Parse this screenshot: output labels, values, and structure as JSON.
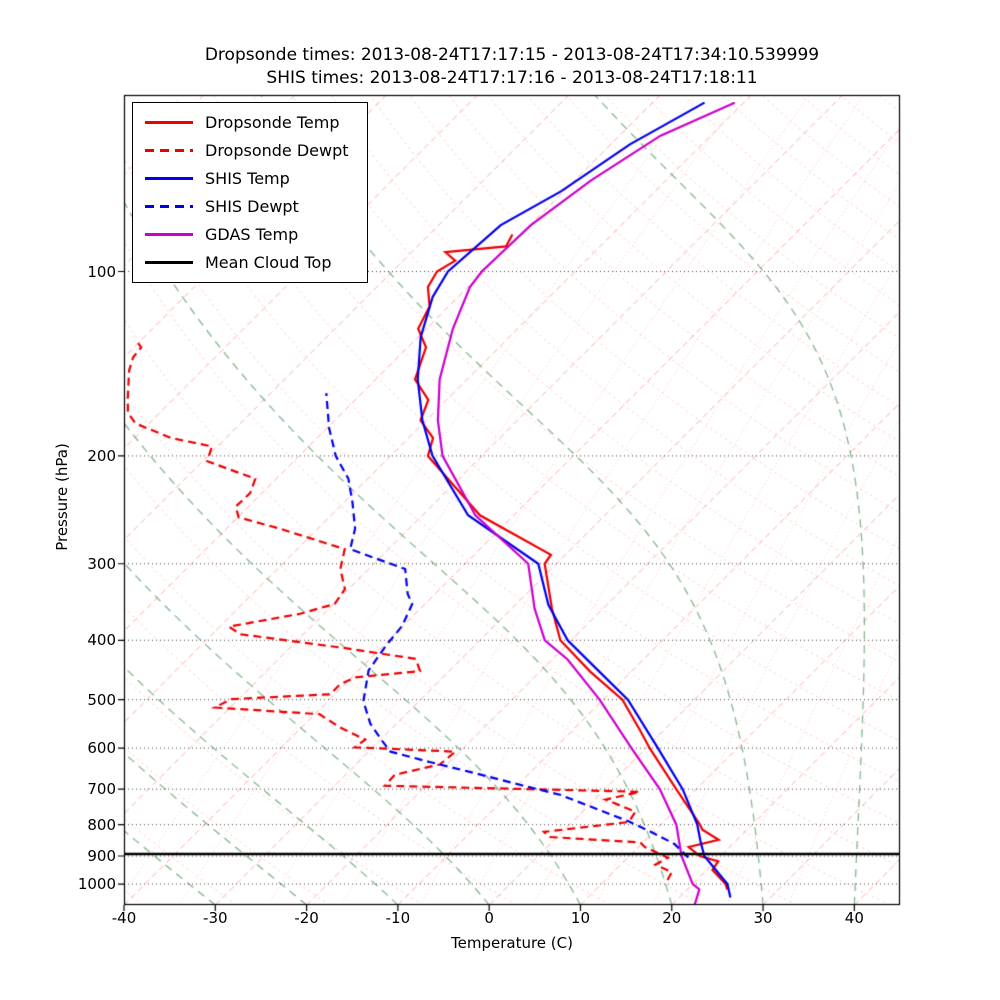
{
  "title": {
    "line1": "Dropsonde times: 2013-08-24T17:17:15 - 2013-08-24T17:34:10.539999",
    "line2": "SHIS times: 2013-08-24T17:17:16 - 2013-08-24T17:18:11"
  },
  "axes": {
    "x_label": "Temperature (C)",
    "y_label": "Pressure (hPa)"
  },
  "chart_data": {
    "type": "line",
    "chart_kind": "skew-T log-p atmospheric sounding",
    "title": "Dropsonde times: 2013-08-24T17:17:15 - 2013-08-24T17:34:10.539999 / SHIS times: 2013-08-24T17:17:16 - 2013-08-24T17:18:11",
    "xlabel": "Temperature (C)",
    "ylabel": "Pressure (hPa)",
    "x_axis": {
      "min": -40,
      "max": 45,
      "ticks": [
        -40,
        -30,
        -20,
        -10,
        0,
        10,
        20,
        30,
        40
      ],
      "tick_labels": [
        "-40",
        "-30",
        "-20",
        "-10",
        "0",
        "10",
        "20",
        "30",
        "40"
      ],
      "note": "skewed coordinates: isotherms slant 45 degrees up-right"
    },
    "y_axis": {
      "scale": "log",
      "bottom_hPa": 1082,
      "top_hPa": 51.5,
      "ticks": [
        100,
        200,
        300,
        400,
        500,
        600,
        700,
        800,
        900,
        1000
      ],
      "tick_labels": [
        "100",
        "200",
        "300",
        "400",
        "500",
        "600",
        "700",
        "800",
        "900",
        "1000"
      ]
    },
    "mean_cloud_top_hPa": 893,
    "points_format": "[pressure_hPa, temperature_C]",
    "series": [
      {
        "name": "Dropsonde Temp",
        "color": "#ee0000",
        "line": "solid",
        "points": [
          [
            1021,
            24.4
          ],
          [
            1000,
            23.6
          ],
          [
            948,
            20.6
          ],
          [
            918,
            20.3
          ],
          [
            900,
            17.7
          ],
          [
            870,
            15.5
          ],
          [
            847,
            18.0
          ],
          [
            815,
            15.1
          ],
          [
            800,
            14.3
          ],
          [
            757,
            11.6
          ],
          [
            700,
            7.8
          ],
          [
            600,
            0.4
          ],
          [
            560,
            -2.7
          ],
          [
            500,
            -7.9
          ],
          [
            450,
            -14.5
          ],
          [
            400,
            -21.2
          ],
          [
            355,
            -25.6
          ],
          [
            300,
            -31.3
          ],
          [
            290,
            -31.6
          ],
          [
            250,
            -43.7
          ],
          [
            200,
            -55.9
          ],
          [
            187,
            -57.3
          ],
          [
            175,
            -60.6
          ],
          [
            162,
            -62.0
          ],
          [
            150,
            -65.7
          ],
          [
            133,
            -68.0
          ],
          [
            124,
            -70.9
          ],
          [
            114,
            -72.1
          ],
          [
            106,
            -74.4
          ],
          [
            100,
            -75.1
          ],
          [
            96,
            -74.3
          ],
          [
            93,
            -76.3
          ],
          [
            91,
            -70.3
          ],
          [
            87,
            -70.9
          ]
        ]
      },
      {
        "name": "Dropsonde Dewpt",
        "color": "#ee0000",
        "line": "dashed",
        "points": [
          [
            985,
            16.8
          ],
          [
            956,
            16.4
          ],
          [
            930,
            13.8
          ],
          [
            906,
            14.4
          ],
          [
            870,
            10.7
          ],
          [
            855,
            9.7
          ],
          [
            838,
            -0.8
          ],
          [
            822,
            -2.0
          ],
          [
            792,
            6.2
          ],
          [
            762,
            5.8
          ],
          [
            728,
            1.2
          ],
          [
            707,
            4.1
          ],
          [
            691,
            -24.5
          ],
          [
            663,
            -24.6
          ],
          [
            638,
            -20.8
          ],
          [
            608,
            -20.5
          ],
          [
            598,
            -32.0
          ],
          [
            581,
            -31.7
          ],
          [
            555,
            -35.8
          ],
          [
            528,
            -39.5
          ],
          [
            515,
            -51.7
          ],
          [
            499,
            -50.8
          ],
          [
            490,
            -40.5
          ],
          [
            472,
            -40.5
          ],
          [
            460,
            -39.6
          ],
          [
            449,
            -33.2
          ],
          [
            429,
            -35.0
          ],
          [
            412,
            -43.9
          ],
          [
            391,
            -56.9
          ],
          [
            380,
            -59.0
          ],
          [
            362,
            -52.6
          ],
          [
            349,
            -49.9
          ],
          [
            330,
            -50.4
          ],
          [
            306,
            -53.1
          ],
          [
            284,
            -54.8
          ],
          [
            263,
            -64.1
          ],
          [
            252,
            -69.9
          ],
          [
            242,
            -71.4
          ],
          [
            230,
            -71.3
          ],
          [
            218,
            -72.3
          ],
          [
            204,
            -79.5
          ],
          [
            193,
            -80.6
          ],
          [
            187,
            -86.0
          ],
          [
            177,
            -91.5
          ],
          [
            170,
            -93.5
          ],
          [
            161,
            -95.1
          ],
          [
            145,
            -98.0
          ],
          [
            138,
            -99.0
          ],
          [
            133,
            -99.2
          ],
          [
            129,
            -100.7
          ]
        ]
      },
      {
        "name": "SHIS Temp",
        "color": "#0000ee",
        "line": "solid",
        "points": [
          [
            1052,
            25.6
          ],
          [
            1000,
            23.8
          ],
          [
            900,
            18.2
          ],
          [
            850,
            16.1
          ],
          [
            800,
            14.0
          ],
          [
            700,
            8.5
          ],
          [
            600,
            1.3
          ],
          [
            500,
            -7.3
          ],
          [
            450,
            -13.5
          ],
          [
            400,
            -20.4
          ],
          [
            350,
            -26.4
          ],
          [
            300,
            -32.0
          ],
          [
            250,
            -45.0
          ],
          [
            200,
            -55.4
          ],
          [
            175,
            -60.4
          ],
          [
            150,
            -65.4
          ],
          [
            128,
            -69.7
          ],
          [
            110,
            -72.8
          ],
          [
            100,
            -73.9
          ],
          [
            84,
            -73.2
          ],
          [
            74,
            -70.3
          ],
          [
            62,
            -67.9
          ],
          [
            53,
            -64.3
          ]
        ]
      },
      {
        "name": "SHIS Dewpt",
        "color": "#0000ee",
        "line": "dashed",
        "points": [
          [
            905,
            16.6
          ],
          [
            860,
            13.6
          ],
          [
            820,
            9.5
          ],
          [
            790,
            6.1
          ],
          [
            715,
            -4.3
          ],
          [
            689,
            -9.7
          ],
          [
            656,
            -16.7
          ],
          [
            632,
            -22.2
          ],
          [
            608,
            -27.6
          ],
          [
            585,
            -29.6
          ],
          [
            547,
            -32.9
          ],
          [
            503,
            -36.1
          ],
          [
            448,
            -38.9
          ],
          [
            409,
            -39.7
          ],
          [
            379,
            -40.1
          ],
          [
            349,
            -41.4
          ],
          [
            336,
            -43.0
          ],
          [
            306,
            -46.0
          ],
          [
            284,
            -54.2
          ],
          [
            263,
            -55.9
          ],
          [
            238,
            -59.1
          ],
          [
            218,
            -62.1
          ],
          [
            200,
            -66.0
          ],
          [
            180,
            -69.8
          ],
          [
            158,
            -73.9
          ]
        ]
      },
      {
        "name": "GDAS Temp",
        "color": "#cc00cc",
        "line": "solid",
        "points": [
          [
            1082,
            22.5
          ],
          [
            1020,
            21.3
          ],
          [
            1000,
            20.0
          ],
          [
            900,
            15.7
          ],
          [
            800,
            11.7
          ],
          [
            700,
            6.0
          ],
          [
            600,
            -1.6
          ],
          [
            500,
            -10.4
          ],
          [
            430,
            -18.3
          ],
          [
            400,
            -22.9
          ],
          [
            355,
            -27.5
          ],
          [
            300,
            -33.1
          ],
          [
            250,
            -44.2
          ],
          [
            200,
            -54.3
          ],
          [
            175,
            -58.7
          ],
          [
            150,
            -63.0
          ],
          [
            124,
            -67.1
          ],
          [
            106,
            -69.8
          ],
          [
            100,
            -70.2
          ],
          [
            84,
            -69.9
          ],
          [
            71,
            -68.2
          ],
          [
            60,
            -65.5
          ],
          [
            53,
            -61.0
          ]
        ]
      },
      {
        "name": "Mean Cloud Top",
        "color": "#000000",
        "line": "solid",
        "hline_pressure_hPa": 893
      }
    ]
  },
  "skewt_background": {
    "isotherms": {
      "start": -130,
      "end": 40,
      "step": 10,
      "color": "rgba(255,90,90,0.50)",
      "dash": [
        6,
        4
      ]
    },
    "dry_adiabats": {
      "theta_start_K": 230,
      "theta_end_K": 540,
      "step_K": 10,
      "color": "rgba(255,110,110,0.38)",
      "dash": [
        2,
        4
      ]
    },
    "moist_adiabats": {
      "t0_start_C": -30,
      "t0_end_C": 50,
      "step_C": 10,
      "color": "rgba(35,125,55,0.55)",
      "dash": [
        8,
        6
      ]
    },
    "mixing_ratio_g_kg": [
      0.1,
      0.2,
      0.5,
      1,
      2,
      3,
      5,
      8,
      12,
      20,
      30
    ],
    "mixing_color": "rgba(255,125,135,0.42)",
    "isobar_color": "rgba(0,0,0,0.8)"
  }
}
